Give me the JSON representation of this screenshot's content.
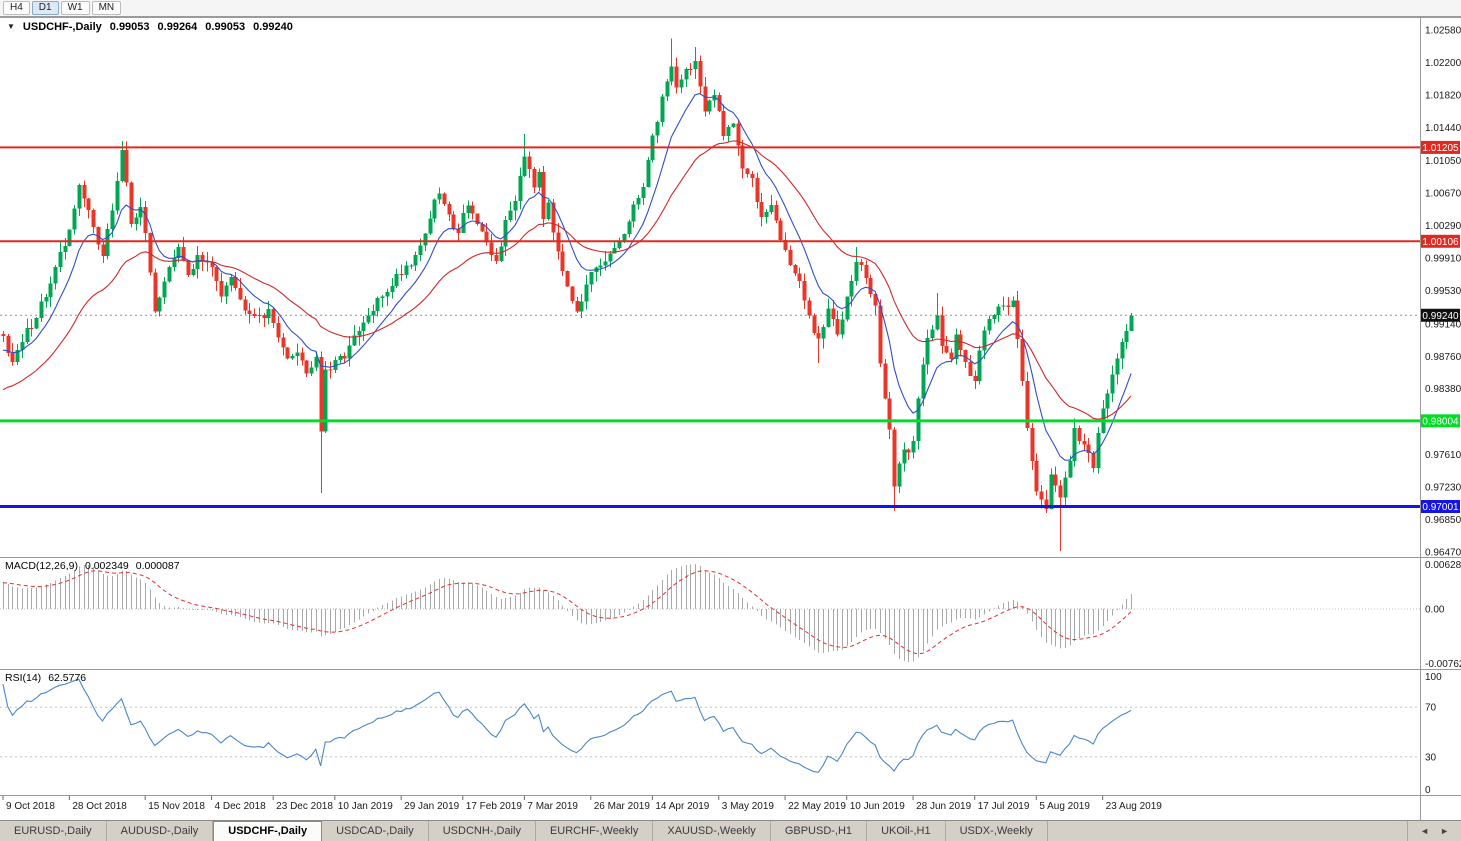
{
  "toolbar": {
    "timeframes": [
      {
        "label": "H4",
        "active": false
      },
      {
        "label": "D1",
        "active": true
      },
      {
        "label": "W1",
        "active": false
      },
      {
        "label": "MN",
        "active": false
      }
    ]
  },
  "chart_header": {
    "collapse_icon": "▼",
    "symbol": "USDCHF-,Daily",
    "open": "0.99053",
    "high": "0.99264",
    "low": "0.99053",
    "close": "0.99240"
  },
  "macd_panel": {
    "label": "MACD(12,26,9)",
    "value_main": "0.002349",
    "value_signal": "0.000087",
    "axis_ticks": [
      "0.006286",
      "0.00",
      "-0.00762"
    ]
  },
  "rsi_panel": {
    "label": "RSI(14)",
    "value": "62.5776",
    "axis_ticks": [
      "100",
      "70",
      "30",
      "0"
    ],
    "levels": [
      70,
      30
    ]
  },
  "price_axis": {
    "ticks": [
      "1.02580",
      "1.02200",
      "1.01820",
      "1.01440",
      "1.01050",
      "1.00670",
      "1.00290",
      "0.99910",
      "0.99530",
      "0.99140",
      "0.98760",
      "0.98380",
      "0.97610",
      "0.97230",
      "0.96850",
      "0.96470"
    ]
  },
  "date_axis": {
    "ticks": [
      {
        "label": "9 Oct 2018",
        "i": 0
      },
      {
        "label": "28 Oct 2018",
        "i": 14
      },
      {
        "label": "15 Nov 2018",
        "i": 30
      },
      {
        "label": "4 Dec 2018",
        "i": 44
      },
      {
        "label": "23 Dec 2018",
        "i": 57
      },
      {
        "label": "10 Jan 2019",
        "i": 70
      },
      {
        "label": "29 Jan 2019",
        "i": 84
      },
      {
        "label": "17 Feb 2019",
        "i": 97
      },
      {
        "label": "7 Mar 2019",
        "i": 110
      },
      {
        "label": "26 Mar 2019",
        "i": 124
      },
      {
        "label": "14 Apr 2019",
        "i": 137
      },
      {
        "label": "3 May 2019",
        "i": 151
      },
      {
        "label": "22 May 2019",
        "i": 165
      },
      {
        "label": "10 Jun 2019",
        "i": 178
      },
      {
        "label": "28 Jun 2019",
        "i": 192
      },
      {
        "label": "17 Jul 2019",
        "i": 205
      },
      {
        "label": "5 Aug 2019",
        "i": 218
      },
      {
        "label": "23 Aug 2019",
        "i": 232
      }
    ]
  },
  "chart_data": {
    "type": "candlestick",
    "symbol": "USDCHF",
    "timeframe": "Daily",
    "title": "USDCHF-,Daily",
    "num_candles": 239,
    "price_range": [
      0.9641,
      1.0272
    ],
    "last_ohlc": {
      "open": 0.99053,
      "high": 0.99264,
      "low": 0.99053,
      "close": 0.9924
    },
    "current_price": {
      "value": 0.9924,
      "label": "0.99240"
    },
    "hlines": [
      {
        "name": "resistance-line-1",
        "price": 1.01205,
        "label": "1.01205",
        "color": "#e02a20",
        "width": 2,
        "text_color": "#ffffff"
      },
      {
        "name": "resistance-line-2",
        "price": 1.00106,
        "label": "1.00106",
        "color": "#e02a20",
        "width": 2,
        "text_color": "#ffffff"
      },
      {
        "name": "support-line-1",
        "price": 0.98004,
        "label": "0.98004",
        "color": "#00dc28",
        "width": 3,
        "text_color": "#ffffff"
      },
      {
        "name": "support-line-2",
        "price": 0.97001,
        "label": "0.97001",
        "color": "#1414e6",
        "width": 3,
        "text_color": "#ffffff"
      }
    ],
    "moving_averages": [
      {
        "name": "ma-fast",
        "period": 10,
        "color": "#2f4fc8"
      },
      {
        "name": "ma-slow",
        "period": 30,
        "color": "#d02828"
      }
    ],
    "macd": {
      "fast": 12,
      "slow": 26,
      "signal": 9
    },
    "rsi": {
      "period": 14,
      "last": 62.5776
    },
    "colors": {
      "up": "#00a651",
      "down": "#e8362a",
      "macd_histogram": "#a8a8a8",
      "macd_signal": "#e03030",
      "rsi_line": "#4a86c8",
      "current_price_line": "#909090",
      "current_price_box": "#111111"
    },
    "close_waypoints": [
      [
        0,
        0.9905
      ],
      [
        2,
        0.9868
      ],
      [
        6,
        0.9915
      ],
      [
        10,
        0.996
      ],
      [
        13,
        1.0008
      ],
      [
        16,
        1.0072
      ],
      [
        19,
        1.0032
      ],
      [
        21,
        0.9992
      ],
      [
        23,
        1.0048
      ],
      [
        25,
        1.0118
      ],
      [
        27,
        1.0032
      ],
      [
        29,
        1.0055
      ],
      [
        32,
        0.9932
      ],
      [
        34,
        0.9965
      ],
      [
        37,
        1.0
      ],
      [
        39,
        0.9972
      ],
      [
        41,
        0.9992
      ],
      [
        44,
        0.9978
      ],
      [
        46,
        0.9952
      ],
      [
        48,
        0.9975
      ],
      [
        50,
        0.994
      ],
      [
        53,
        0.9928
      ],
      [
        56,
        0.9925
      ],
      [
        58,
        0.9905
      ],
      [
        60,
        0.9868
      ],
      [
        62,
        0.9885
      ],
      [
        64,
        0.9858
      ],
      [
        66,
        0.9875
      ],
      [
        67,
        0.979
      ],
      [
        68,
        0.9855
      ],
      [
        70,
        0.9865
      ],
      [
        74,
        0.9895
      ],
      [
        78,
        0.993
      ],
      [
        81,
        0.9955
      ],
      [
        83,
        0.997
      ],
      [
        86,
        0.9988
      ],
      [
        88,
        1.0005
      ],
      [
        90,
        1.004
      ],
      [
        92,
        1.0068
      ],
      [
        94,
        1.0038
      ],
      [
        96,
        1.0025
      ],
      [
        98,
        1.0058
      ],
      [
        100,
        1.003
      ],
      [
        102,
        1.0002
      ],
      [
        104,
        0.9988
      ],
      [
        106,
        1.003
      ],
      [
        108,
        1.0062
      ],
      [
        110,
        1.0115
      ],
      [
        112,
        1.008
      ],
      [
        113,
        1.0095
      ],
      [
        114,
        1.0042
      ],
      [
        115,
        1.006
      ],
      [
        117,
        0.9992
      ],
      [
        119,
        0.9962
      ],
      [
        121,
        0.9932
      ],
      [
        124,
        0.9968
      ],
      [
        127,
        0.9985
      ],
      [
        129,
        1.0002
      ],
      [
        132,
        1.003
      ],
      [
        135,
        1.008
      ],
      [
        137,
        1.013
      ],
      [
        139,
        1.018
      ],
      [
        141,
        1.0215
      ],
      [
        142,
        1.0195
      ],
      [
        144,
        1.021
      ],
      [
        146,
        1.0222
      ],
      [
        148,
        1.0158
      ],
      [
        150,
        1.018
      ],
      [
        151,
        1.0165
      ],
      [
        152,
        1.014
      ],
      [
        154,
        1.0152
      ],
      [
        156,
        1.0098
      ],
      [
        158,
        1.0078
      ],
      [
        160,
        1.004
      ],
      [
        162,
        1.0058
      ],
      [
        164,
        1.0012
      ],
      [
        165,
        1.0
      ],
      [
        168,
        0.996
      ],
      [
        170,
        0.992
      ],
      [
        172,
        0.989
      ],
      [
        174,
        0.9932
      ],
      [
        176,
        0.99
      ],
      [
        178,
        0.995
      ],
      [
        180,
        0.9992
      ],
      [
        182,
        0.9968
      ],
      [
        184,
        0.993
      ],
      [
        185,
        0.987
      ],
      [
        187,
        0.979
      ],
      [
        188,
        0.9725
      ],
      [
        190,
        0.9762
      ],
      [
        192,
        0.9775
      ],
      [
        193,
        0.983
      ],
      [
        195,
        0.9898
      ],
      [
        197,
        0.9928
      ],
      [
        198,
        0.9892
      ],
      [
        200,
        0.9868
      ],
      [
        201,
        0.9898
      ],
      [
        203,
        0.9868
      ],
      [
        205,
        0.9852
      ],
      [
        206,
        0.9888
      ],
      [
        208,
        0.9918
      ],
      [
        210,
        0.9938
      ],
      [
        213,
        0.994
      ],
      [
        215,
        0.984
      ],
      [
        217,
        0.9752
      ],
      [
        218,
        0.9722
      ],
      [
        220,
        0.97
      ],
      [
        221,
        0.9732
      ],
      [
        223,
        0.9712
      ],
      [
        225,
        0.976
      ],
      [
        226,
        0.9788
      ],
      [
        228,
        0.9772
      ],
      [
        230,
        0.9742
      ],
      [
        231,
        0.9788
      ],
      [
        232,
        0.982
      ],
      [
        234,
        0.9852
      ],
      [
        235,
        0.988
      ],
      [
        237,
        0.99053
      ],
      [
        238,
        0.9924
      ]
    ],
    "wick_spikes": [
      [
        25,
        1.0128
      ],
      [
        67,
        0.9716
      ],
      [
        110,
        1.0136
      ],
      [
        141,
        1.0248
      ],
      [
        146,
        1.0238
      ],
      [
        172,
        0.9868
      ],
      [
        180,
        1.0004
      ],
      [
        188,
        0.9695
      ],
      [
        197,
        0.995
      ],
      [
        223,
        0.9648
      ]
    ]
  },
  "tab_bar": {
    "tabs": [
      "EURUSD-,Daily",
      "AUDUSD-,Daily",
      "USDCHF-,Daily",
      "USDCAD-,Daily",
      "USDCNH-,Daily",
      "EURCHF-,Weekly",
      "XAUUSD-,Weekly",
      "GBPUSD-,H1",
      "UKOil-,H1",
      "USDX-,Weekly"
    ],
    "active_index": 2,
    "scroll_left_icon": "◄",
    "scroll_right_icon": "►"
  }
}
